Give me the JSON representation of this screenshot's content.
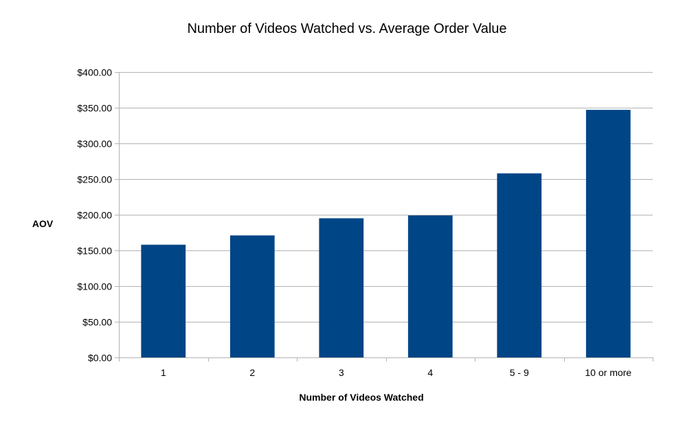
{
  "chart_data": {
    "type": "bar",
    "title": "Number of Videos Watched vs. Average Order Value",
    "xlabel": "Number of Videos Watched",
    "ylabel": "AOV",
    "categories": [
      "1",
      "2",
      "3",
      "4",
      "5 - 9",
      "10 or more"
    ],
    "values": [
      158,
      171,
      195,
      199,
      258,
      347
    ],
    "ylim": [
      0,
      400
    ],
    "yticks": [
      "$0.00",
      "$50.00",
      "$100.00",
      "$150.00",
      "$200.00",
      "$250.00",
      "$300.00",
      "$350.00",
      "$400.00"
    ],
    "grid": true,
    "legend": "none",
    "bar_color": "#004586"
  }
}
